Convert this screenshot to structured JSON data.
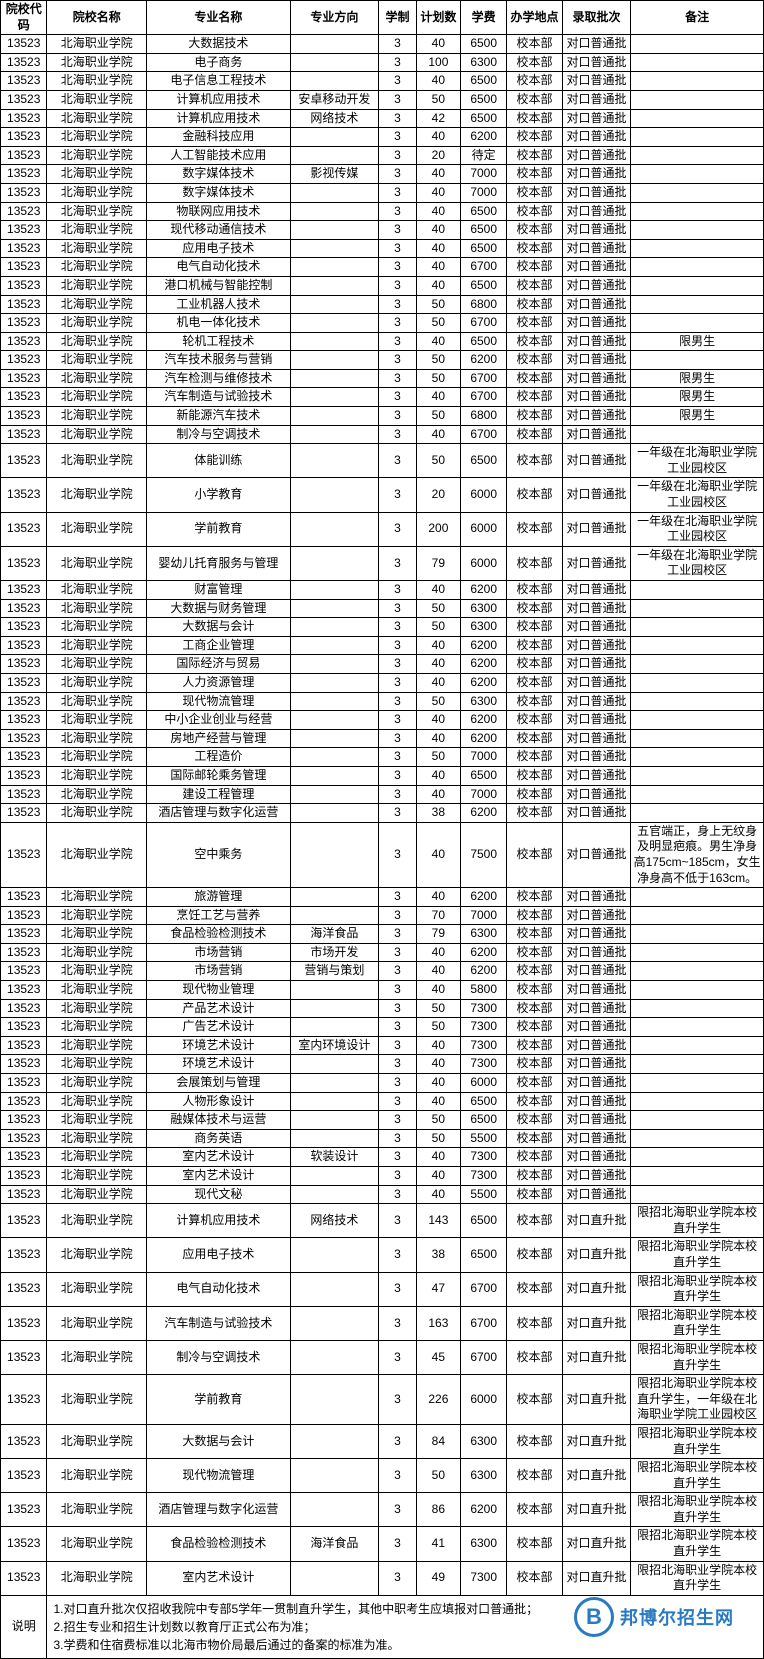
{
  "headers": {
    "code": "院校代码",
    "school": "院校名称",
    "major": "专业名称",
    "direction": "专业方向",
    "years": "学制",
    "plan": "计划数",
    "fee": "学费",
    "place": "办学地点",
    "batch": "录取批次",
    "note": "备注"
  },
  "rows": [
    {
      "code": "13523",
      "school": "北海职业学院",
      "major": "大数据技术",
      "direction": "",
      "years": "3",
      "plan": "40",
      "fee": "6500",
      "place": "校本部",
      "batch": "对口普通批",
      "note": ""
    },
    {
      "code": "13523",
      "school": "北海职业学院",
      "major": "电子商务",
      "direction": "",
      "years": "3",
      "plan": "100",
      "fee": "6300",
      "place": "校本部",
      "batch": "对口普通批",
      "note": ""
    },
    {
      "code": "13523",
      "school": "北海职业学院",
      "major": "电子信息工程技术",
      "direction": "",
      "years": "3",
      "plan": "40",
      "fee": "6500",
      "place": "校本部",
      "batch": "对口普通批",
      "note": ""
    },
    {
      "code": "13523",
      "school": "北海职业学院",
      "major": "计算机应用技术",
      "direction": "安卓移动开发",
      "years": "3",
      "plan": "50",
      "fee": "6500",
      "place": "校本部",
      "batch": "对口普通批",
      "note": ""
    },
    {
      "code": "13523",
      "school": "北海职业学院",
      "major": "计算机应用技术",
      "direction": "网络技术",
      "years": "3",
      "plan": "42",
      "fee": "6500",
      "place": "校本部",
      "batch": "对口普通批",
      "note": ""
    },
    {
      "code": "13523",
      "school": "北海职业学院",
      "major": "金融科技应用",
      "direction": "",
      "years": "3",
      "plan": "40",
      "fee": "6200",
      "place": "校本部",
      "batch": "对口普通批",
      "note": ""
    },
    {
      "code": "13523",
      "school": "北海职业学院",
      "major": "人工智能技术应用",
      "direction": "",
      "years": "3",
      "plan": "20",
      "fee": "待定",
      "place": "校本部",
      "batch": "对口普通批",
      "note": ""
    },
    {
      "code": "13523",
      "school": "北海职业学院",
      "major": "数字媒体技术",
      "direction": "影视传媒",
      "years": "3",
      "plan": "40",
      "fee": "7000",
      "place": "校本部",
      "batch": "对口普通批",
      "note": ""
    },
    {
      "code": "13523",
      "school": "北海职业学院",
      "major": "数字媒体技术",
      "direction": "",
      "years": "3",
      "plan": "40",
      "fee": "7000",
      "place": "校本部",
      "batch": "对口普通批",
      "note": ""
    },
    {
      "code": "13523",
      "school": "北海职业学院",
      "major": "物联网应用技术",
      "direction": "",
      "years": "3",
      "plan": "40",
      "fee": "6500",
      "place": "校本部",
      "batch": "对口普通批",
      "note": ""
    },
    {
      "code": "13523",
      "school": "北海职业学院",
      "major": "现代移动通信技术",
      "direction": "",
      "years": "3",
      "plan": "40",
      "fee": "6500",
      "place": "校本部",
      "batch": "对口普通批",
      "note": ""
    },
    {
      "code": "13523",
      "school": "北海职业学院",
      "major": "应用电子技术",
      "direction": "",
      "years": "3",
      "plan": "40",
      "fee": "6500",
      "place": "校本部",
      "batch": "对口普通批",
      "note": ""
    },
    {
      "code": "13523",
      "school": "北海职业学院",
      "major": "电气自动化技术",
      "direction": "",
      "years": "3",
      "plan": "40",
      "fee": "6700",
      "place": "校本部",
      "batch": "对口普通批",
      "note": ""
    },
    {
      "code": "13523",
      "school": "北海职业学院",
      "major": "港口机械与智能控制",
      "direction": "",
      "years": "3",
      "plan": "40",
      "fee": "6500",
      "place": "校本部",
      "batch": "对口普通批",
      "note": ""
    },
    {
      "code": "13523",
      "school": "北海职业学院",
      "major": "工业机器人技术",
      "direction": "",
      "years": "3",
      "plan": "50",
      "fee": "6800",
      "place": "校本部",
      "batch": "对口普通批",
      "note": ""
    },
    {
      "code": "13523",
      "school": "北海职业学院",
      "major": "机电一体化技术",
      "direction": "",
      "years": "3",
      "plan": "50",
      "fee": "6700",
      "place": "校本部",
      "batch": "对口普通批",
      "note": ""
    },
    {
      "code": "13523",
      "school": "北海职业学院",
      "major": "轮机工程技术",
      "direction": "",
      "years": "3",
      "plan": "40",
      "fee": "6500",
      "place": "校本部",
      "batch": "对口普通批",
      "note": "限男生"
    },
    {
      "code": "13523",
      "school": "北海职业学院",
      "major": "汽车技术服务与营销",
      "direction": "",
      "years": "3",
      "plan": "50",
      "fee": "6200",
      "place": "校本部",
      "batch": "对口普通批",
      "note": ""
    },
    {
      "code": "13523",
      "school": "北海职业学院",
      "major": "汽车检测与维修技术",
      "direction": "",
      "years": "3",
      "plan": "50",
      "fee": "6700",
      "place": "校本部",
      "batch": "对口普通批",
      "note": "限男生"
    },
    {
      "code": "13523",
      "school": "北海职业学院",
      "major": "汽车制造与试验技术",
      "direction": "",
      "years": "3",
      "plan": "40",
      "fee": "6700",
      "place": "校本部",
      "batch": "对口普通批",
      "note": "限男生"
    },
    {
      "code": "13523",
      "school": "北海职业学院",
      "major": "新能源汽车技术",
      "direction": "",
      "years": "3",
      "plan": "50",
      "fee": "6800",
      "place": "校本部",
      "batch": "对口普通批",
      "note": "限男生"
    },
    {
      "code": "13523",
      "school": "北海职业学院",
      "major": "制冷与空调技术",
      "direction": "",
      "years": "3",
      "plan": "40",
      "fee": "6700",
      "place": "校本部",
      "batch": "对口普通批",
      "note": ""
    },
    {
      "code": "13523",
      "school": "北海职业学院",
      "major": "体能训练",
      "direction": "",
      "years": "3",
      "plan": "50",
      "fee": "6500",
      "place": "校本部",
      "batch": "对口普通批",
      "note": "一年级在北海职业学院工业园校区"
    },
    {
      "code": "13523",
      "school": "北海职业学院",
      "major": "小学教育",
      "direction": "",
      "years": "3",
      "plan": "20",
      "fee": "6000",
      "place": "校本部",
      "batch": "对口普通批",
      "note": "一年级在北海职业学院工业园校区"
    },
    {
      "code": "13523",
      "school": "北海职业学院",
      "major": "学前教育",
      "direction": "",
      "years": "3",
      "plan": "200",
      "fee": "6000",
      "place": "校本部",
      "batch": "对口普通批",
      "note": "一年级在北海职业学院工业园校区"
    },
    {
      "code": "13523",
      "school": "北海职业学院",
      "major": "婴幼儿托育服务与管理",
      "direction": "",
      "years": "3",
      "plan": "79",
      "fee": "6000",
      "place": "校本部",
      "batch": "对口普通批",
      "note": "一年级在北海职业学院工业园校区"
    },
    {
      "code": "13523",
      "school": "北海职业学院",
      "major": "财富管理",
      "direction": "",
      "years": "3",
      "plan": "40",
      "fee": "6200",
      "place": "校本部",
      "batch": "对口普通批",
      "note": ""
    },
    {
      "code": "13523",
      "school": "北海职业学院",
      "major": "大数据与财务管理",
      "direction": "",
      "years": "3",
      "plan": "50",
      "fee": "6300",
      "place": "校本部",
      "batch": "对口普通批",
      "note": ""
    },
    {
      "code": "13523",
      "school": "北海职业学院",
      "major": "大数据与会计",
      "direction": "",
      "years": "3",
      "plan": "50",
      "fee": "6300",
      "place": "校本部",
      "batch": "对口普通批",
      "note": ""
    },
    {
      "code": "13523",
      "school": "北海职业学院",
      "major": "工商企业管理",
      "direction": "",
      "years": "3",
      "plan": "40",
      "fee": "6200",
      "place": "校本部",
      "batch": "对口普通批",
      "note": ""
    },
    {
      "code": "13523",
      "school": "北海职业学院",
      "major": "国际经济与贸易",
      "direction": "",
      "years": "3",
      "plan": "40",
      "fee": "6200",
      "place": "校本部",
      "batch": "对口普通批",
      "note": ""
    },
    {
      "code": "13523",
      "school": "北海职业学院",
      "major": "人力资源管理",
      "direction": "",
      "years": "3",
      "plan": "40",
      "fee": "6200",
      "place": "校本部",
      "batch": "对口普通批",
      "note": ""
    },
    {
      "code": "13523",
      "school": "北海职业学院",
      "major": "现代物流管理",
      "direction": "",
      "years": "3",
      "plan": "50",
      "fee": "6300",
      "place": "校本部",
      "batch": "对口普通批",
      "note": ""
    },
    {
      "code": "13523",
      "school": "北海职业学院",
      "major": "中小企业创业与经营",
      "direction": "",
      "years": "3",
      "plan": "40",
      "fee": "6200",
      "place": "校本部",
      "batch": "对口普通批",
      "note": ""
    },
    {
      "code": "13523",
      "school": "北海职业学院",
      "major": "房地产经营与管理",
      "direction": "",
      "years": "3",
      "plan": "40",
      "fee": "6200",
      "place": "校本部",
      "batch": "对口普通批",
      "note": ""
    },
    {
      "code": "13523",
      "school": "北海职业学院",
      "major": "工程造价",
      "direction": "",
      "years": "3",
      "plan": "50",
      "fee": "7000",
      "place": "校本部",
      "batch": "对口普通批",
      "note": ""
    },
    {
      "code": "13523",
      "school": "北海职业学院",
      "major": "国际邮轮乘务管理",
      "direction": "",
      "years": "3",
      "plan": "40",
      "fee": "6500",
      "place": "校本部",
      "batch": "对口普通批",
      "note": ""
    },
    {
      "code": "13523",
      "school": "北海职业学院",
      "major": "建设工程管理",
      "direction": "",
      "years": "3",
      "plan": "40",
      "fee": "7000",
      "place": "校本部",
      "batch": "对口普通批",
      "note": ""
    },
    {
      "code": "13523",
      "school": "北海职业学院",
      "major": "酒店管理与数字化运营",
      "direction": "",
      "years": "3",
      "plan": "38",
      "fee": "6200",
      "place": "校本部",
      "batch": "对口普通批",
      "note": ""
    },
    {
      "code": "13523",
      "school": "北海职业学院",
      "major": "空中乘务",
      "direction": "",
      "years": "3",
      "plan": "40",
      "fee": "7500",
      "place": "校本部",
      "batch": "对口普通批",
      "note": "五官端正，身上无纹身及明显疤痕。男生净身高175cm~185cm，女生净身高不低于163cm。"
    },
    {
      "code": "13523",
      "school": "北海职业学院",
      "major": "旅游管理",
      "direction": "",
      "years": "3",
      "plan": "40",
      "fee": "6200",
      "place": "校本部",
      "batch": "对口普通批",
      "note": ""
    },
    {
      "code": "13523",
      "school": "北海职业学院",
      "major": "烹饪工艺与营养",
      "direction": "",
      "years": "3",
      "plan": "70",
      "fee": "7000",
      "place": "校本部",
      "batch": "对口普通批",
      "note": ""
    },
    {
      "code": "13523",
      "school": "北海职业学院",
      "major": "食品检验检测技术",
      "direction": "海洋食品",
      "years": "3",
      "plan": "79",
      "fee": "6300",
      "place": "校本部",
      "batch": "对口普通批",
      "note": ""
    },
    {
      "code": "13523",
      "school": "北海职业学院",
      "major": "市场营销",
      "direction": "市场开发",
      "years": "3",
      "plan": "40",
      "fee": "6200",
      "place": "校本部",
      "batch": "对口普通批",
      "note": ""
    },
    {
      "code": "13523",
      "school": "北海职业学院",
      "major": "市场营销",
      "direction": "营销与策划",
      "years": "3",
      "plan": "40",
      "fee": "6200",
      "place": "校本部",
      "batch": "对口普通批",
      "note": ""
    },
    {
      "code": "13523",
      "school": "北海职业学院",
      "major": "现代物业管理",
      "direction": "",
      "years": "3",
      "plan": "40",
      "fee": "5800",
      "place": "校本部",
      "batch": "对口普通批",
      "note": ""
    },
    {
      "code": "13523",
      "school": "北海职业学院",
      "major": "产品艺术设计",
      "direction": "",
      "years": "3",
      "plan": "50",
      "fee": "7300",
      "place": "校本部",
      "batch": "对口普通批",
      "note": ""
    },
    {
      "code": "13523",
      "school": "北海职业学院",
      "major": "广告艺术设计",
      "direction": "",
      "years": "3",
      "plan": "50",
      "fee": "7300",
      "place": "校本部",
      "batch": "对口普通批",
      "note": ""
    },
    {
      "code": "13523",
      "school": "北海职业学院",
      "major": "环境艺术设计",
      "direction": "室内环境设计",
      "years": "3",
      "plan": "40",
      "fee": "7300",
      "place": "校本部",
      "batch": "对口普通批",
      "note": ""
    },
    {
      "code": "13523",
      "school": "北海职业学院",
      "major": "环境艺术设计",
      "direction": "",
      "years": "3",
      "plan": "40",
      "fee": "7300",
      "place": "校本部",
      "batch": "对口普通批",
      "note": ""
    },
    {
      "code": "13523",
      "school": "北海职业学院",
      "major": "会展策划与管理",
      "direction": "",
      "years": "3",
      "plan": "40",
      "fee": "6000",
      "place": "校本部",
      "batch": "对口普通批",
      "note": ""
    },
    {
      "code": "13523",
      "school": "北海职业学院",
      "major": "人物形象设计",
      "direction": "",
      "years": "3",
      "plan": "40",
      "fee": "6500",
      "place": "校本部",
      "batch": "对口普通批",
      "note": ""
    },
    {
      "code": "13523",
      "school": "北海职业学院",
      "major": "融媒体技术与运营",
      "direction": "",
      "years": "3",
      "plan": "50",
      "fee": "6500",
      "place": "校本部",
      "batch": "对口普通批",
      "note": ""
    },
    {
      "code": "13523",
      "school": "北海职业学院",
      "major": "商务英语",
      "direction": "",
      "years": "3",
      "plan": "50",
      "fee": "5500",
      "place": "校本部",
      "batch": "对口普通批",
      "note": ""
    },
    {
      "code": "13523",
      "school": "北海职业学院",
      "major": "室内艺术设计",
      "direction": "软装设计",
      "years": "3",
      "plan": "40",
      "fee": "7300",
      "place": "校本部",
      "batch": "对口普通批",
      "note": ""
    },
    {
      "code": "13523",
      "school": "北海职业学院",
      "major": "室内艺术设计",
      "direction": "",
      "years": "3",
      "plan": "40",
      "fee": "7300",
      "place": "校本部",
      "batch": "对口普通批",
      "note": ""
    },
    {
      "code": "13523",
      "school": "北海职业学院",
      "major": "现代文秘",
      "direction": "",
      "years": "3",
      "plan": "40",
      "fee": "5500",
      "place": "校本部",
      "batch": "对口普通批",
      "note": ""
    },
    {
      "code": "13523",
      "school": "北海职业学院",
      "major": "计算机应用技术",
      "direction": "网络技术",
      "years": "3",
      "plan": "143",
      "fee": "6500",
      "place": "校本部",
      "batch": "对口直升批",
      "note": "限招北海职业学院本校直升学生"
    },
    {
      "code": "13523",
      "school": "北海职业学院",
      "major": "应用电子技术",
      "direction": "",
      "years": "3",
      "plan": "38",
      "fee": "6500",
      "place": "校本部",
      "batch": "对口直升批",
      "note": "限招北海职业学院本校直升学生"
    },
    {
      "code": "13523",
      "school": "北海职业学院",
      "major": "电气自动化技术",
      "direction": "",
      "years": "3",
      "plan": "47",
      "fee": "6700",
      "place": "校本部",
      "batch": "对口直升批",
      "note": "限招北海职业学院本校直升学生"
    },
    {
      "code": "13523",
      "school": "北海职业学院",
      "major": "汽车制造与试验技术",
      "direction": "",
      "years": "3",
      "plan": "163",
      "fee": "6700",
      "place": "校本部",
      "batch": "对口直升批",
      "note": "限招北海职业学院本校直升学生"
    },
    {
      "code": "13523",
      "school": "北海职业学院",
      "major": "制冷与空调技术",
      "direction": "",
      "years": "3",
      "plan": "45",
      "fee": "6700",
      "place": "校本部",
      "batch": "对口直升批",
      "note": "限招北海职业学院本校直升学生"
    },
    {
      "code": "13523",
      "school": "北海职业学院",
      "major": "学前教育",
      "direction": "",
      "years": "3",
      "plan": "226",
      "fee": "6000",
      "place": "校本部",
      "batch": "对口直升批",
      "note": "限招北海职业学院本校直升学生，一年级在北海职业学院工业园校区"
    },
    {
      "code": "13523",
      "school": "北海职业学院",
      "major": "大数据与会计",
      "direction": "",
      "years": "3",
      "plan": "84",
      "fee": "6300",
      "place": "校本部",
      "batch": "对口直升批",
      "note": "限招北海职业学院本校直升学生"
    },
    {
      "code": "13523",
      "school": "北海职业学院",
      "major": "现代物流管理",
      "direction": "",
      "years": "3",
      "plan": "50",
      "fee": "6300",
      "place": "校本部",
      "batch": "对口直升批",
      "note": "限招北海职业学院本校直升学生"
    },
    {
      "code": "13523",
      "school": "北海职业学院",
      "major": "酒店管理与数字化运营",
      "direction": "",
      "years": "3",
      "plan": "86",
      "fee": "6200",
      "place": "校本部",
      "batch": "对口直升批",
      "note": "限招北海职业学院本校直升学生"
    },
    {
      "code": "13523",
      "school": "北海职业学院",
      "major": "食品检验检测技术",
      "direction": "海洋食品",
      "years": "3",
      "plan": "41",
      "fee": "6300",
      "place": "校本部",
      "batch": "对口直升批",
      "note": "限招北海职业学院本校直升学生"
    },
    {
      "code": "13523",
      "school": "北海职业学院",
      "major": "室内艺术设计",
      "direction": "",
      "years": "3",
      "plan": "49",
      "fee": "7300",
      "place": "校本部",
      "batch": "对口直升批",
      "note": "限招北海职业学院本校直升学生"
    }
  ],
  "footer": {
    "label": "说明",
    "lines": [
      "1.对口直升批次仅招收我院中专部5学年一贯制直升学生，其他中职考生应填报对口普通批；",
      "2.招生专业和招生计划数以教育厅正式公布为准；",
      "3.学费和住宿费标准以北海市物价局最后通过的备案的标准为准。"
    ]
  },
  "watermark": {
    "badge": "B",
    "text": "邦博尔招生网"
  }
}
